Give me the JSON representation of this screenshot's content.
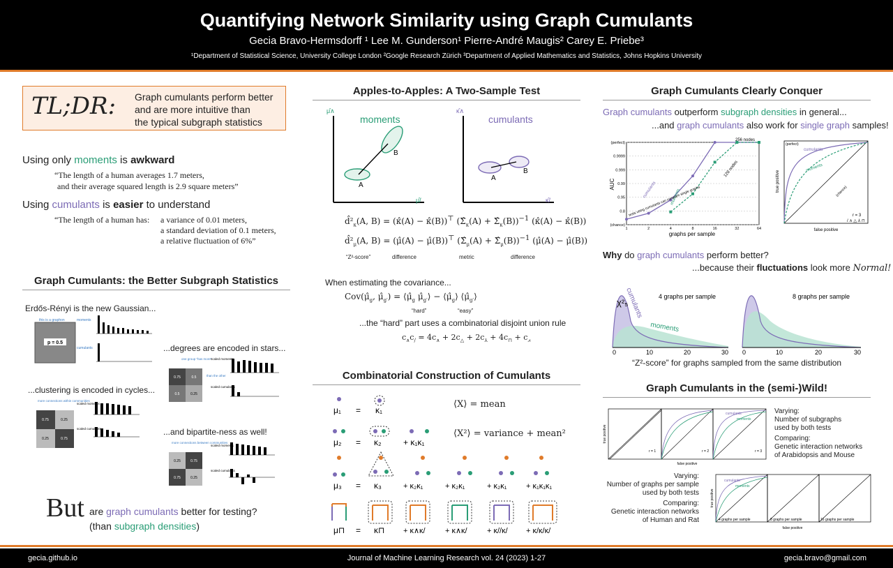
{
  "header": {
    "title": "Quantifying Network Similarity using Graph Cumulants",
    "authors": "Gecia Bravo-Hermsdorff ¹    Lee M. Gunderson¹    Pierre-André Maugis²    Carey E. Priebe³",
    "affiliations": "¹Department of Statistical Science, University College London  ²Google Research Zürich  ³Department of Applied Mathematics and Statistics, Johns Hopkins University"
  },
  "footer": {
    "left": "gecia.github.io",
    "center": "Journal of Machine Learning Research vol. 24 (2023) 1-27",
    "right": "gecia.bravo@gmail.com"
  },
  "tldr": {
    "mark": "TL;DR:",
    "line1": "Graph cumulants perform better",
    "line2": "and are more intuitive than",
    "line3": "the typical subgraph statistics"
  },
  "left": {
    "moments_lead_a": "Using only ",
    "moments_word": "moments",
    "moments_lead_b": " is ",
    "moments_lead_c": "awkward",
    "quote1_a": "“The length of a human averages 1.7 meters,",
    "quote1_b": "and their average squared length is 2.9 square meters”",
    "cumulants_lead_a": "Using ",
    "cumulants_word": "cumulants",
    "cumulants_lead_b": " is ",
    "cumulants_lead_c": "easier",
    "cumulants_lead_d": " to understand",
    "quote2_a": "“The length of a human has:",
    "quote2_b": "a variance of 0.01 meters,",
    "quote2_c": "a standard deviation of 0.1 meters,",
    "quote2_d": "a relative fluctuation of 6%”",
    "section_title": "Graph Cumulants: the Better Subgraph Statistics",
    "er": "Erdős-Rényi is the new Gaussian...",
    "this_is_graphon": "this is a graphon",
    "p_label": "p = 0.5",
    "moments": "moments",
    "cumulants": "cumulants",
    "degrees": "...degrees are encoded in stars...",
    "one_group": "one group “has more”",
    "than_other": "than the other",
    "scaled_moments": "scaled moments",
    "scaled_cumulants": "scaled cumulants",
    "clustering": "...clustering is encoded in cycles...",
    "more_within": "more connections within communities",
    "bipartite": "...and bipartite-ness as well!",
    "more_between": "more connections between communities",
    "but": "But",
    "but_a": " are ",
    "but_b": "graph cumulants",
    "but_c": " better for testing?",
    "than_a": "(than ",
    "than_b": "subgraph densities",
    "than_c": ")",
    "cells": [
      "0.75",
      "0.5",
      "0.5",
      "0.25",
      "0.75",
      "0.25",
      "0.25",
      "0.75",
      "0.25",
      "0.75",
      "0.75",
      "0.25"
    ]
  },
  "middle": {
    "title1": "Apples-to-Apples: A Two-Sample Test",
    "moments": "moments",
    "cumulants": "cumulants",
    "A": "A",
    "B": "B",
    "z2": "“Z²-score”",
    "difference": "difference",
    "metric": "metric",
    "when": "When estimating the covariance...",
    "hard": "“hard”",
    "easy": "“easy”",
    "hard_part": "...the “hard” part uses a combinatorial disjoint union rule",
    "title2": "Combinatorial Construction of Cumulants",
    "mean": "⟨X⟩ = mean",
    "var": "⟨X²⟩ = variance + mean²"
  },
  "right": {
    "title1": "Graph Cumulants Clearly Conquer",
    "line1_a": "Graph cumulants",
    "line1_b": " outperform ",
    "line1_c": "subgraph densities",
    "line1_d": " in general...",
    "line2_a": "...and ",
    "line2_b": "graph cumulants",
    "line2_c": " also work for ",
    "line2_d": "single graph",
    "line2_e": " samples!",
    "auc_label": "AUC",
    "x_label": "graphs per sample",
    "nodes256": "256 nodes",
    "nodes128": "128 nodes",
    "single_graph_note": "tests using cumulants can compare single graphs",
    "perfect": "(perfect)",
    "chance": "(chance)",
    "true_pos": "true positive",
    "false_pos": "false positive",
    "r3": "r = 3",
    "why_a": "Why",
    "why_b": " do ",
    "why_c": "graph cumulants",
    "why_d": " perform better?",
    "because_a": "...because their ",
    "because_b": "fluctuations",
    "because_c": " look more ",
    "because_d": "Normal!",
    "g4": "4 graphs per sample",
    "g8": "8 graphs per sample",
    "chi": "χ²₅",
    "zscore": "“Z²-score” for graphs sampled from the same distribution",
    "title2": "Graph Cumulants in the (semi-)Wild!",
    "varying1_a": "Varying",
    "varying1_b": "Number of subgraphs",
    "varying1_c": "used by both tests",
    "comparing1_a": "Comparing",
    "comparing1_b": "Genetic interaction networks",
    "comparing1_c": "of Arabidopsis and Mouse",
    "varying2_a": "Varying",
    "varying2_b": "Number of graphs per sample",
    "varying2_c": "used by both tests",
    "comparing2_a": "Comparing",
    "comparing2_b": "Genetic interaction networks",
    "comparing2_c": "of Human and Rat",
    "r1": "r = 1",
    "r2": "r = 2",
    "gps4": "4 graphs per sample",
    "gps8": "8 graphs per sample",
    "gps16": "16 graphs per sample"
  },
  "chart_data": [
    {
      "type": "line",
      "xlabel": "graphs per sample",
      "ylabel": "AUC",
      "x": [
        1,
        2,
        4,
        8,
        16,
        32,
        64
      ],
      "ytick_labels": [
        "(chance)",
        "0.8",
        "0.95",
        "0.99",
        "0.999",
        "0.9999",
        "(perfect)"
      ],
      "series": [
        {
          "name": "cumulants",
          "values": [
            0.62,
            0.75,
            0.92,
            0.995,
            1.0,
            1.0,
            1.0
          ]
        },
        {
          "name": "moments",
          "values": [
            null,
            null,
            0.78,
            0.96,
            0.9995,
            1.0,
            1.0
          ]
        }
      ]
    },
    {
      "type": "line",
      "xlabel": "false positive",
      "ylabel": "true positive"
    }
  ]
}
